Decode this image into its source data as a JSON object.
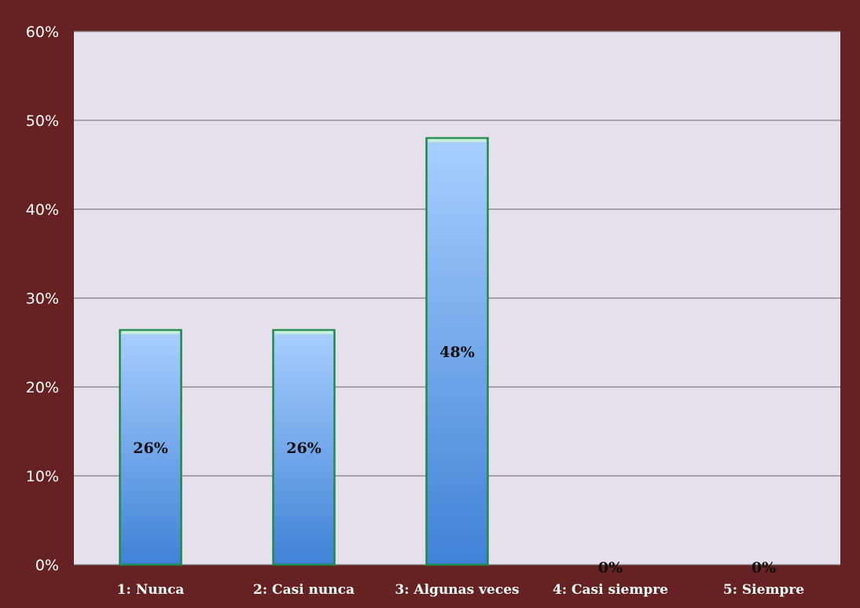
{
  "colors": {
    "frame": "#662222",
    "plot_bg": "#e6e0ec",
    "gridline": "#7f7f7f",
    "bar_top": "#a9cfff",
    "bar_bottom": "#3f82d6",
    "bar_border": "#1e8a4a",
    "bar_cap": "#c8f0d8",
    "axis_text": "#ffffff",
    "label_text": "#0f0f0f"
  },
  "chart_data": {
    "type": "bar",
    "categories": [
      "1: Nunca",
      "2: Casi nunca",
      "3: Algunas veces",
      "4: Casi siempre",
      "5: Siempre"
    ],
    "values": [
      26.4,
      26.4,
      48,
      0,
      0
    ],
    "data_labels": [
      "26%",
      "26%",
      "48%",
      "0%",
      "0%"
    ],
    "y_ticks": [
      "0%",
      "10%",
      "20%",
      "30%",
      "40%",
      "50%",
      "60%"
    ],
    "ylim": [
      0,
      60
    ],
    "grid": true,
    "legend": "none"
  }
}
